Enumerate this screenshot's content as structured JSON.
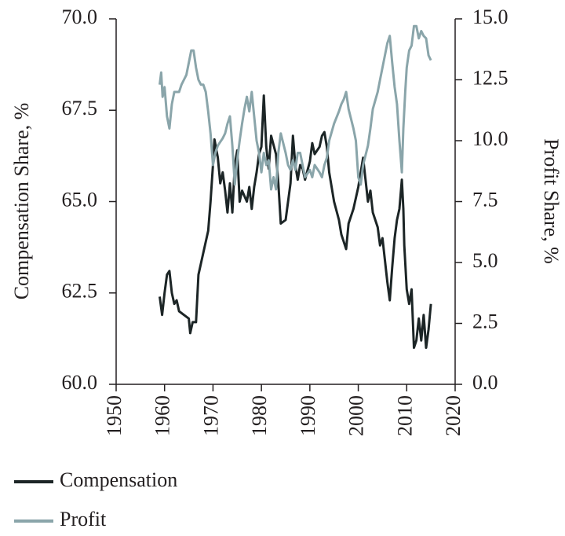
{
  "chart_data": {
    "type": "line",
    "y_label": "Compensation Share, %",
    "y2_label": "Profit Share, %",
    "xlim": [
      1950,
      2020
    ],
    "xticks": [
      1950,
      1960,
      1970,
      1980,
      1990,
      2000,
      2010,
      2020
    ],
    "ylim": [
      60,
      70
    ],
    "yticks": [
      {
        "value": 60,
        "label": "60.0"
      },
      {
        "value": 62.5,
        "label": "62.5"
      },
      {
        "value": 65,
        "label": "65.0"
      },
      {
        "value": 67.5,
        "label": "67.5"
      },
      {
        "value": 70,
        "label": "70.0"
      }
    ],
    "y2lim": [
      0,
      15
    ],
    "y2ticks": [
      {
        "value": 0,
        "label": "0.0"
      },
      {
        "value": 2.5,
        "label": "2.5"
      },
      {
        "value": 5,
        "label": "5.0"
      },
      {
        "value": 7.5,
        "label": "7.5"
      },
      {
        "value": 10,
        "label": "10.0"
      },
      {
        "value": 12.5,
        "label": "12.5"
      },
      {
        "value": 15,
        "label": "15.0"
      }
    ],
    "series": [
      {
        "name": "Compensation",
        "color": "#1c2526",
        "x": [
          1959,
          1959.5,
          1960,
          1960.5,
          1961,
          1961.5,
          1962,
          1962.5,
          1963,
          1964,
          1965,
          1965.3,
          1965.8,
          1966.5,
          1967,
          1968,
          1969,
          1969.5,
          1970,
          1970.3,
          1971,
          1971.5,
          1972,
          1972.5,
          1973,
          1973.5,
          1974,
          1974.5,
          1975,
          1975.5,
          1976,
          1977,
          1977.5,
          1978,
          1978.5,
          1979,
          1979.5,
          1980,
          1980.5,
          1981,
          1981.5,
          1982,
          1983,
          1983.5,
          1984,
          1985,
          1985.5,
          1986,
          1986.5,
          1987,
          1987.5,
          1988,
          1988.5,
          1989,
          1990,
          1990.5,
          1991,
          1992,
          1992.5,
          1993,
          1993.5,
          1994,
          1995,
          1996,
          1996.5,
          1997,
          1997.5,
          1998,
          1999,
          2000,
          2000.5,
          2001,
          2001.5,
          2002,
          2002.5,
          2003,
          2004,
          2004.5,
          2005,
          2005.5,
          2006,
          2006.5,
          2007,
          2007.5,
          2008,
          2008.5,
          2009,
          2009.3,
          2009.5,
          2010,
          2010.5,
          2011,
          2011.5,
          2012,
          2012.5,
          2013,
          2013.5,
          2014,
          2014.5,
          2015
        ],
        "values": [
          62.4,
          61.9,
          62.5,
          63.0,
          63.1,
          62.5,
          62.2,
          62.3,
          62.0,
          61.9,
          61.8,
          61.4,
          61.7,
          61.7,
          63.0,
          63.6,
          64.2,
          65.0,
          66.0,
          66.7,
          66.2,
          65.5,
          65.8,
          65.3,
          64.7,
          65.5,
          64.7,
          66.0,
          66.4,
          65.0,
          65.3,
          65.0,
          65.4,
          64.8,
          65.4,
          65.8,
          66.3,
          66.5,
          67.9,
          66.5,
          65.9,
          66.8,
          66.3,
          65.5,
          64.4,
          64.5,
          65.0,
          65.5,
          66.8,
          66.0,
          65.6,
          66.0,
          65.9,
          65.6,
          66.1,
          66.6,
          66.3,
          66.5,
          66.8,
          66.9,
          66.5,
          65.8,
          65.0,
          64.5,
          64.1,
          63.9,
          63.7,
          64.4,
          64.8,
          65.4,
          65.8,
          66.2,
          65.6,
          65.0,
          65.3,
          64.7,
          64.3,
          63.8,
          64.0,
          63.4,
          62.8,
          62.3,
          63.2,
          64.0,
          64.5,
          64.8,
          65.6,
          64.8,
          63.8,
          62.6,
          62.2,
          62.6,
          61.0,
          61.2,
          61.8,
          61.2,
          61.9,
          61.0,
          61.5,
          62.2
        ]
      },
      {
        "name": "Profit",
        "color": "#8aa5aa",
        "axis": "y2",
        "x": [
          1959,
          1959.3,
          1959.6,
          1960,
          1960.5,
          1961,
          1961.5,
          1962,
          1963,
          1963.5,
          1964,
          1964.5,
          1965,
          1965.5,
          1966,
          1966.5,
          1967,
          1967.5,
          1968,
          1968.5,
          1969,
          1969.5,
          1970,
          1970.5,
          1971,
          1972,
          1972.5,
          1973,
          1973.5,
          1974,
          1974.5,
          1975,
          1975.5,
          1976,
          1976.5,
          1977,
          1977.5,
          1978,
          1978.5,
          1979,
          1979.5,
          1980,
          1980.5,
          1981,
          1981.5,
          1982,
          1982.5,
          1983,
          1983.5,
          1984,
          1985,
          1985.5,
          1986,
          1986.5,
          1987,
          1987.5,
          1988,
          1988.5,
          1989,
          1990,
          1990.5,
          1991,
          1992,
          1992.5,
          1993,
          1993.5,
          1994,
          1995,
          1996,
          1996.5,
          1997,
          1997.5,
          1998,
          1999,
          1999.5,
          2000,
          2000.5,
          2001,
          2002,
          2002.5,
          2003,
          2004,
          2004.5,
          2005,
          2005.5,
          2006,
          2006.5,
          2007,
          2007.5,
          2008,
          2008.5,
          2009,
          2009.3,
          2009.7,
          2010,
          2010.5,
          2011,
          2011.5,
          2012,
          2012.5,
          2013,
          2013.5,
          2014,
          2014.5,
          2015
        ],
        "values": [
          12.3,
          12.8,
          11.8,
          12.2,
          11.0,
          10.5,
          11.5,
          12.0,
          12.0,
          12.3,
          12.5,
          12.7,
          13.2,
          13.7,
          13.7,
          13.0,
          12.5,
          12.3,
          12.3,
          12.0,
          11.2,
          10.3,
          9.0,
          9.5,
          9.8,
          10.1,
          10.3,
          10.7,
          11.0,
          9.8,
          8.2,
          9.2,
          10.0,
          10.7,
          11.3,
          11.8,
          11.2,
          12.0,
          11.0,
          10.0,
          9.5,
          8.7,
          9.5,
          9.0,
          9.2,
          8.0,
          8.5,
          8.0,
          9.5,
          10.3,
          9.5,
          9.0,
          8.8,
          9.2,
          8.8,
          9.5,
          9.5,
          9.0,
          8.5,
          8.8,
          8.5,
          9.0,
          8.7,
          8.5,
          9.0,
          9.3,
          10.0,
          10.7,
          11.2,
          11.5,
          11.7,
          12.0,
          11.3,
          10.5,
          10.0,
          8.5,
          8.2,
          9.0,
          9.8,
          10.5,
          11.3,
          12.0,
          12.5,
          13.0,
          13.5,
          14.0,
          14.3,
          13.2,
          12.2,
          11.5,
          10.0,
          8.7,
          10.5,
          12.0,
          13.0,
          13.7,
          13.9,
          14.7,
          14.7,
          14.2,
          14.5,
          14.3,
          14.2,
          13.5,
          13.3
        ]
      }
    ]
  }
}
